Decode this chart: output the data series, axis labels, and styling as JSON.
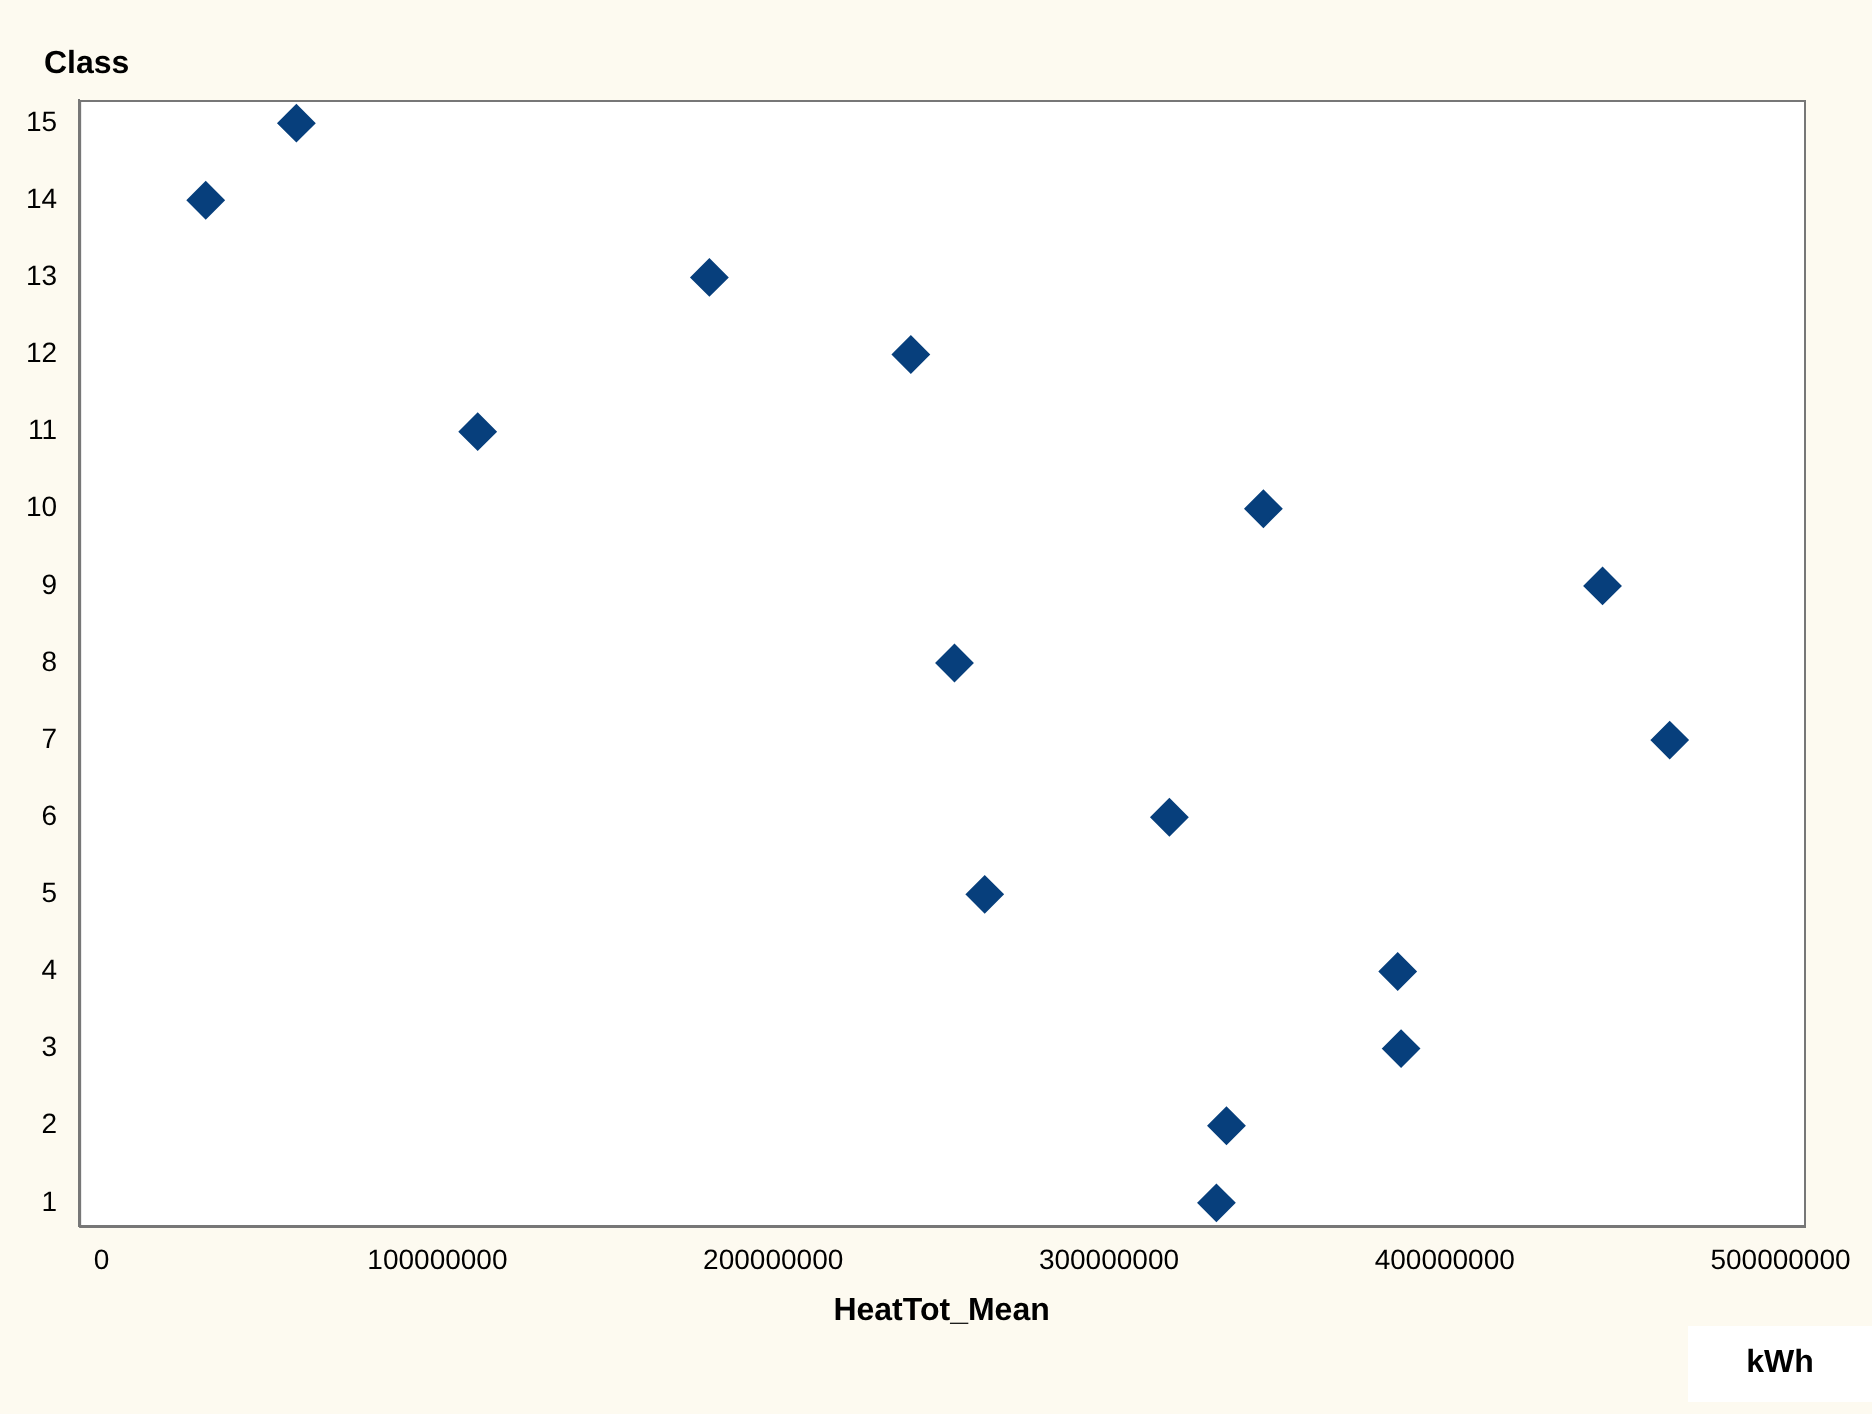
{
  "chart_data": {
    "type": "scatter",
    "xlabel": "HeatTot_Mean",
    "ylabel": "Class",
    "annotations": [
      "kWh"
    ],
    "x": [
      332000000,
      335000000,
      387000000,
      386000000,
      263000000,
      318000000,
      467000000,
      254000000,
      447000000,
      346000000,
      112000000,
      241000000,
      181000000,
      31000000,
      58000000
    ],
    "series": [
      {
        "color": "#073f7c",
        "values": [
          1,
          2,
          3,
          4,
          5,
          6,
          7,
          8,
          9,
          10,
          11,
          12,
          13,
          14,
          15
        ]
      }
    ],
    "xlim": [
      -6700000,
      507000000
    ],
    "xticks": [
      0,
      100000000,
      200000000,
      300000000,
      400000000,
      500000000
    ],
    "ylim": [
      0.7,
      15.3
    ],
    "yticks": [
      1,
      2,
      3,
      4,
      5,
      6,
      7,
      8,
      9,
      10,
      11,
      12,
      13,
      14,
      15
    ],
    "marker": "diamond",
    "grid": false,
    "legend": false
  }
}
